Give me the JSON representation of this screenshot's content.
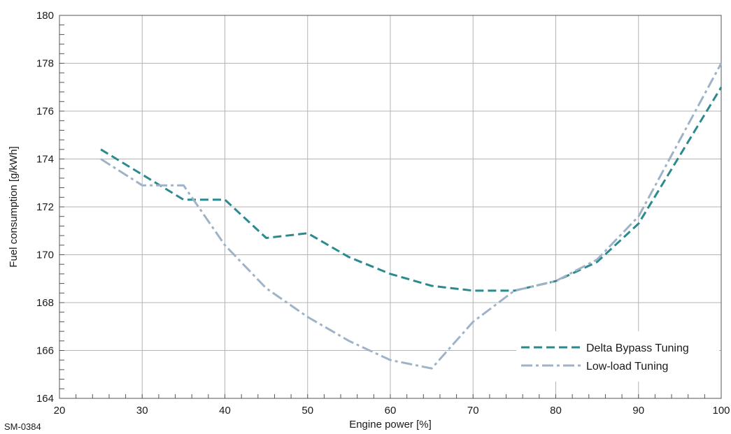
{
  "chart_data": {
    "type": "line",
    "xlabel": "Engine power [%]",
    "ylabel": "Fuel consumption [g/kWh]",
    "xlim": [
      20,
      100
    ],
    "ylim": [
      164,
      180
    ],
    "x_ticks": [
      20,
      30,
      40,
      50,
      60,
      70,
      80,
      90,
      100
    ],
    "y_ticks": [
      164,
      166,
      168,
      170,
      172,
      174,
      176,
      178,
      180
    ],
    "grid": true,
    "legend_position": "bottom-right",
    "series": [
      {
        "name": "Delta Bypass Tuning",
        "style": "dashed",
        "color": "#2a8a8e",
        "points": [
          [
            25,
            174.4
          ],
          [
            35,
            172.3
          ],
          [
            40,
            172.3
          ],
          [
            45,
            170.7
          ],
          [
            50,
            170.9
          ],
          [
            55,
            169.9
          ],
          [
            60,
            169.2
          ],
          [
            65,
            168.7
          ],
          [
            70,
            168.5
          ],
          [
            75,
            168.5
          ],
          [
            80,
            168.9
          ],
          [
            85,
            169.7
          ],
          [
            90,
            171.3
          ],
          [
            100,
            177.0
          ]
        ]
      },
      {
        "name": "Low-load Tuning",
        "style": "dash-dot",
        "color": "#9fb3c8",
        "points": [
          [
            25,
            174.0
          ],
          [
            30,
            172.9
          ],
          [
            35,
            172.9
          ],
          [
            40,
            170.4
          ],
          [
            45,
            168.6
          ],
          [
            50,
            167.4
          ],
          [
            55,
            166.4
          ],
          [
            60,
            165.6
          ],
          [
            65,
            165.25
          ],
          [
            70,
            167.2
          ],
          [
            75,
            168.5
          ],
          [
            80,
            168.9
          ],
          [
            85,
            169.8
          ],
          [
            90,
            171.6
          ],
          [
            100,
            178.0
          ]
        ]
      }
    ]
  },
  "figure_code": "SM-0384"
}
